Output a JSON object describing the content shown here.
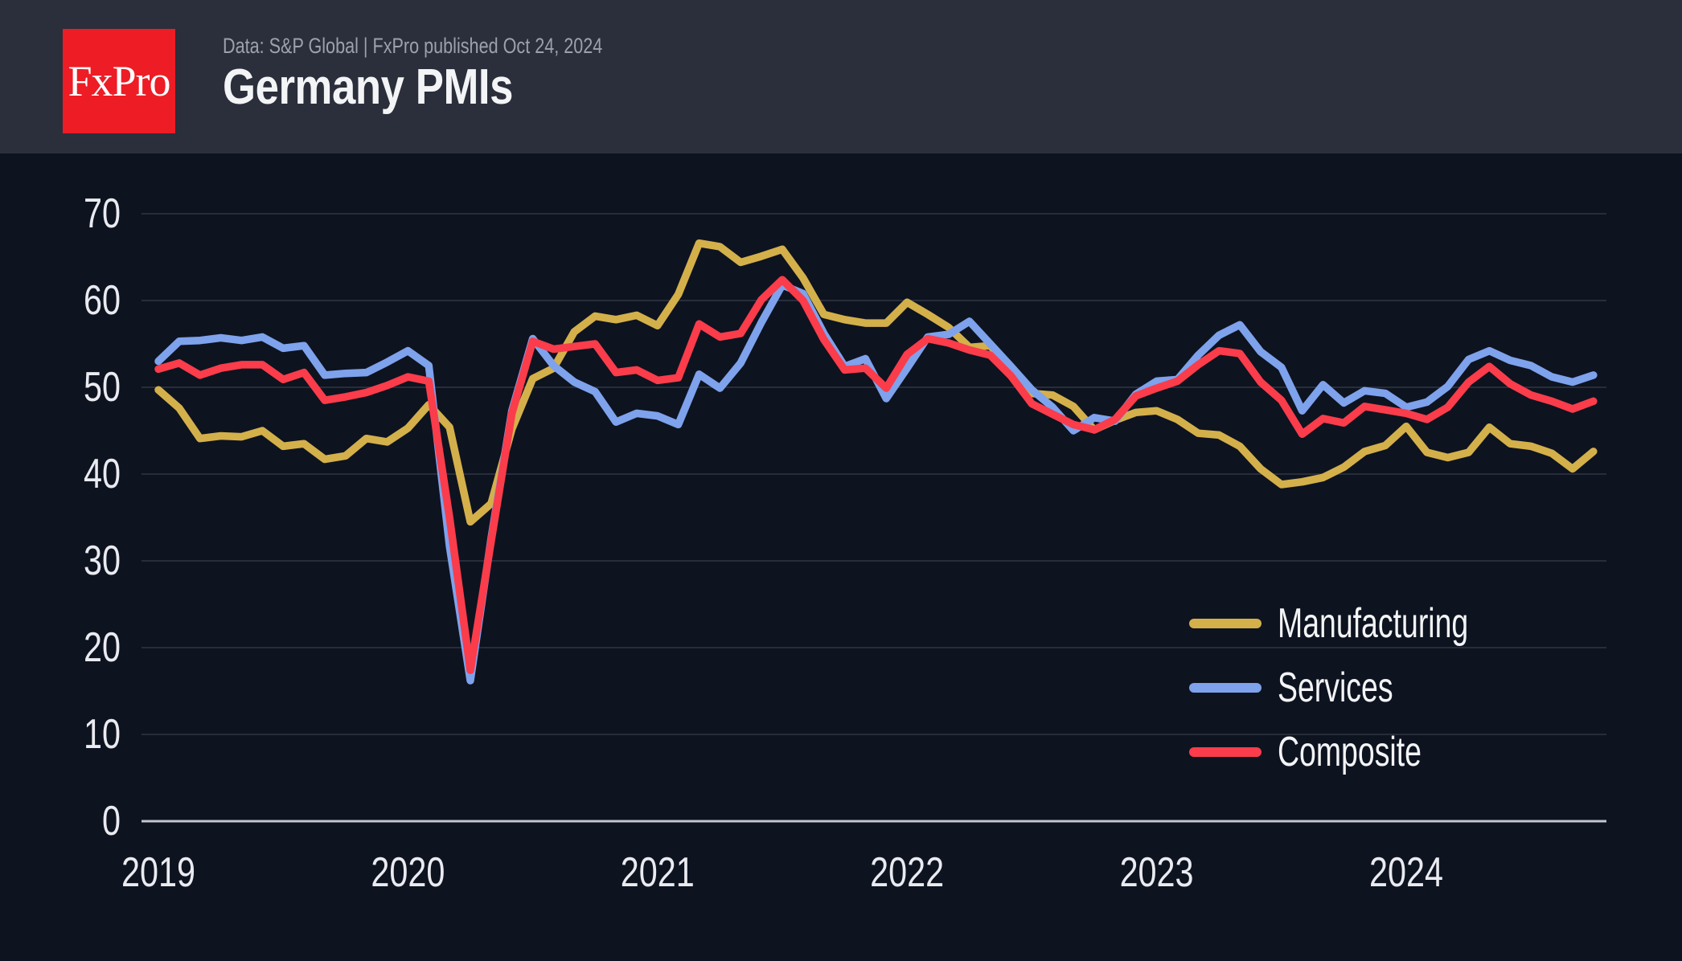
{
  "header": {
    "logo_text": "FxPro",
    "source_line": "Data: S&P Global | FxPro published Oct 24, 2024",
    "title": "Germany PMIs"
  },
  "chart_data": {
    "type": "line",
    "title": "Germany PMIs",
    "xlabel": "",
    "ylabel": "",
    "grid": true,
    "legend_position": "right-lower",
    "x_axis": {
      "unit": "month",
      "start": "2019-01",
      "end": "2024-10",
      "ticks": [
        "2019",
        "2020",
        "2021",
        "2022",
        "2023",
        "2024"
      ]
    },
    "y_axis": {
      "min": 0,
      "max": 70,
      "ticks": [
        0,
        10,
        20,
        30,
        40,
        50,
        60,
        70
      ]
    },
    "style": {
      "background_color": "#0e1320",
      "header_color": "#2b2e3b",
      "grid_color": "#272d3a",
      "axis_line_color": "#c3c6cd",
      "tick_color": "#e9ebf0",
      "logo_color": "#ee1c25"
    },
    "series": [
      {
        "name": "Manufacturing",
        "color": "#d4b04b",
        "values": [
          49.7,
          47.6,
          44.1,
          44.4,
          44.3,
          45.0,
          43.2,
          43.5,
          41.7,
          42.1,
          44.1,
          43.7,
          45.3,
          48.0,
          45.4,
          34.5,
          36.6,
          45.2,
          51.0,
          52.2,
          56.4,
          58.2,
          57.8,
          58.3,
          57.1,
          60.7,
          66.6,
          66.2,
          64.4,
          65.1,
          65.9,
          62.6,
          58.4,
          57.8,
          57.4,
          57.4,
          59.8,
          58.4,
          56.9,
          54.6,
          54.8,
          52.0,
          49.3,
          49.1,
          47.8,
          45.1,
          46.2,
          47.1,
          47.3,
          46.3,
          44.7,
          44.5,
          43.2,
          40.6,
          38.8,
          39.1,
          39.6,
          40.8,
          42.6,
          43.3,
          45.5,
          42.5,
          41.9,
          42.5,
          45.4,
          43.5,
          43.2,
          42.4,
          40.6,
          42.6
        ]
      },
      {
        "name": "Services",
        "color": "#7ea2ec",
        "values": [
          53.0,
          55.3,
          55.4,
          55.7,
          55.4,
          55.8,
          54.5,
          54.8,
          51.4,
          51.6,
          51.7,
          52.9,
          54.2,
          52.5,
          31.7,
          16.2,
          32.6,
          47.3,
          55.6,
          52.5,
          50.6,
          49.5,
          46.0,
          47.0,
          46.7,
          45.7,
          51.5,
          49.9,
          52.8,
          57.5,
          61.8,
          60.8,
          56.2,
          52.4,
          53.3,
          48.7,
          52.2,
          55.8,
          56.1,
          57.6,
          55.0,
          52.4,
          49.7,
          47.7,
          45.0,
          46.5,
          46.1,
          49.2,
          50.7,
          50.9,
          53.7,
          56.0,
          57.2,
          54.1,
          52.3,
          47.3,
          50.3,
          48.2,
          49.6,
          49.3,
          47.7,
          48.3,
          50.1,
          53.2,
          54.2,
          53.1,
          52.5,
          51.2,
          50.6,
          51.4
        ]
      },
      {
        "name": "Composite",
        "color": "#fa3c4b",
        "values": [
          52.1,
          52.8,
          51.4,
          52.2,
          52.6,
          52.6,
          50.9,
          51.7,
          48.5,
          48.9,
          49.4,
          50.2,
          51.2,
          50.7,
          35.0,
          17.4,
          32.3,
          47.0,
          55.3,
          54.4,
          54.7,
          55.0,
          51.7,
          52.0,
          50.8,
          51.1,
          57.3,
          55.8,
          56.2,
          60.1,
          62.4,
          60.0,
          55.5,
          52.0,
          52.2,
          49.9,
          53.8,
          55.6,
          55.1,
          54.3,
          53.7,
          51.3,
          48.1,
          46.9,
          45.7,
          45.1,
          46.3,
          49.0,
          49.9,
          50.7,
          52.6,
          54.2,
          53.9,
          50.6,
          48.5,
          44.6,
          46.4,
          45.9,
          47.8,
          47.4,
          47.0,
          46.3,
          47.7,
          50.6,
          52.4,
          50.4,
          49.1,
          48.4,
          47.5,
          48.4
        ]
      }
    ]
  }
}
